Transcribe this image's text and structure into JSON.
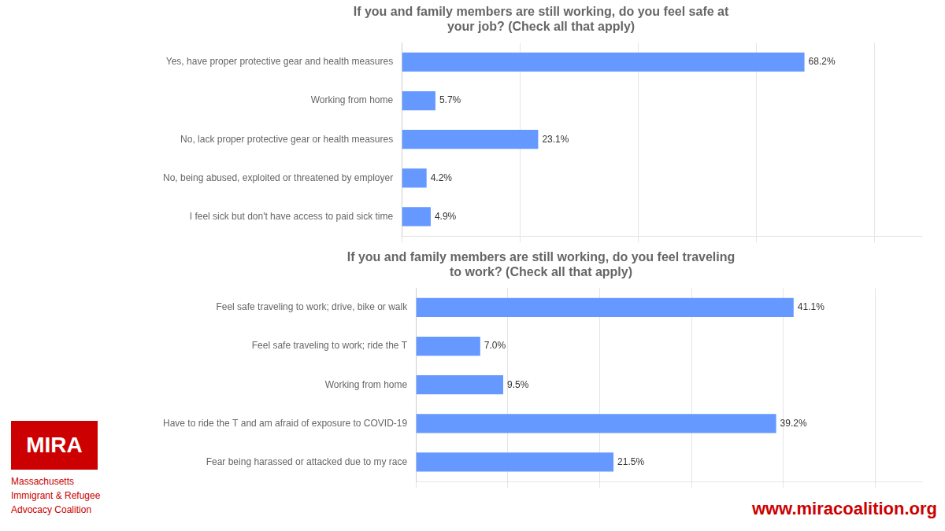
{
  "chart_data": [
    {
      "type": "bar",
      "orientation": "horizontal",
      "title": "If you and family members are still working, do you feel safe at\nyour job? (Check all that apply)",
      "categories": [
        "Yes, have proper protective gear and health measures",
        "Working from home",
        "No, lack proper protective gear or health measures",
        "No, being abused, exploited or threatened by employer",
        "I feel sick but don't have access to paid sick time"
      ],
      "values": [
        68.2,
        5.7,
        23.1,
        4.2,
        4.9
      ],
      "value_labels": [
        "68.2%",
        "5.7%",
        "23.1%",
        "4.2%",
        "4.9%"
      ],
      "data_labels": true,
      "color": "#6699FF",
      "xlim": [
        0,
        88
      ],
      "xticks": [
        0,
        20,
        40,
        60,
        80
      ],
      "grid": true,
      "tick_labels": "y"
    },
    {
      "type": "bar",
      "orientation": "horizontal",
      "title": "If you and family members are still working, do you feel traveling\nto work? (Check all that apply)",
      "categories": [
        "Feel safe traveling to work; drive, bike or walk",
        "Feel safe traveling to work; ride the T",
        "Working from home",
        "Have to ride the T and am afraid of exposure to COVID-19",
        "Fear being harassed or attacked due to my race"
      ],
      "values": [
        41.1,
        7.0,
        9.5,
        39.2,
        21.5
      ],
      "value_labels": [
        "41.1%",
        "7.0%",
        "9.5%",
        "39.2%",
        "21.5%"
      ],
      "data_labels": true,
      "color": "#6699FF",
      "xlim": [
        0,
        55
      ],
      "xticks": [
        0,
        10,
        20,
        30,
        40,
        50
      ],
      "grid": true,
      "tick_labels": "y",
      "annotations": [
        "MIRA",
        "Massachusetts",
        "Immigrant & Refugee",
        "Advocacy Coalition",
        "www.miracoalition.org"
      ]
    }
  ]
}
